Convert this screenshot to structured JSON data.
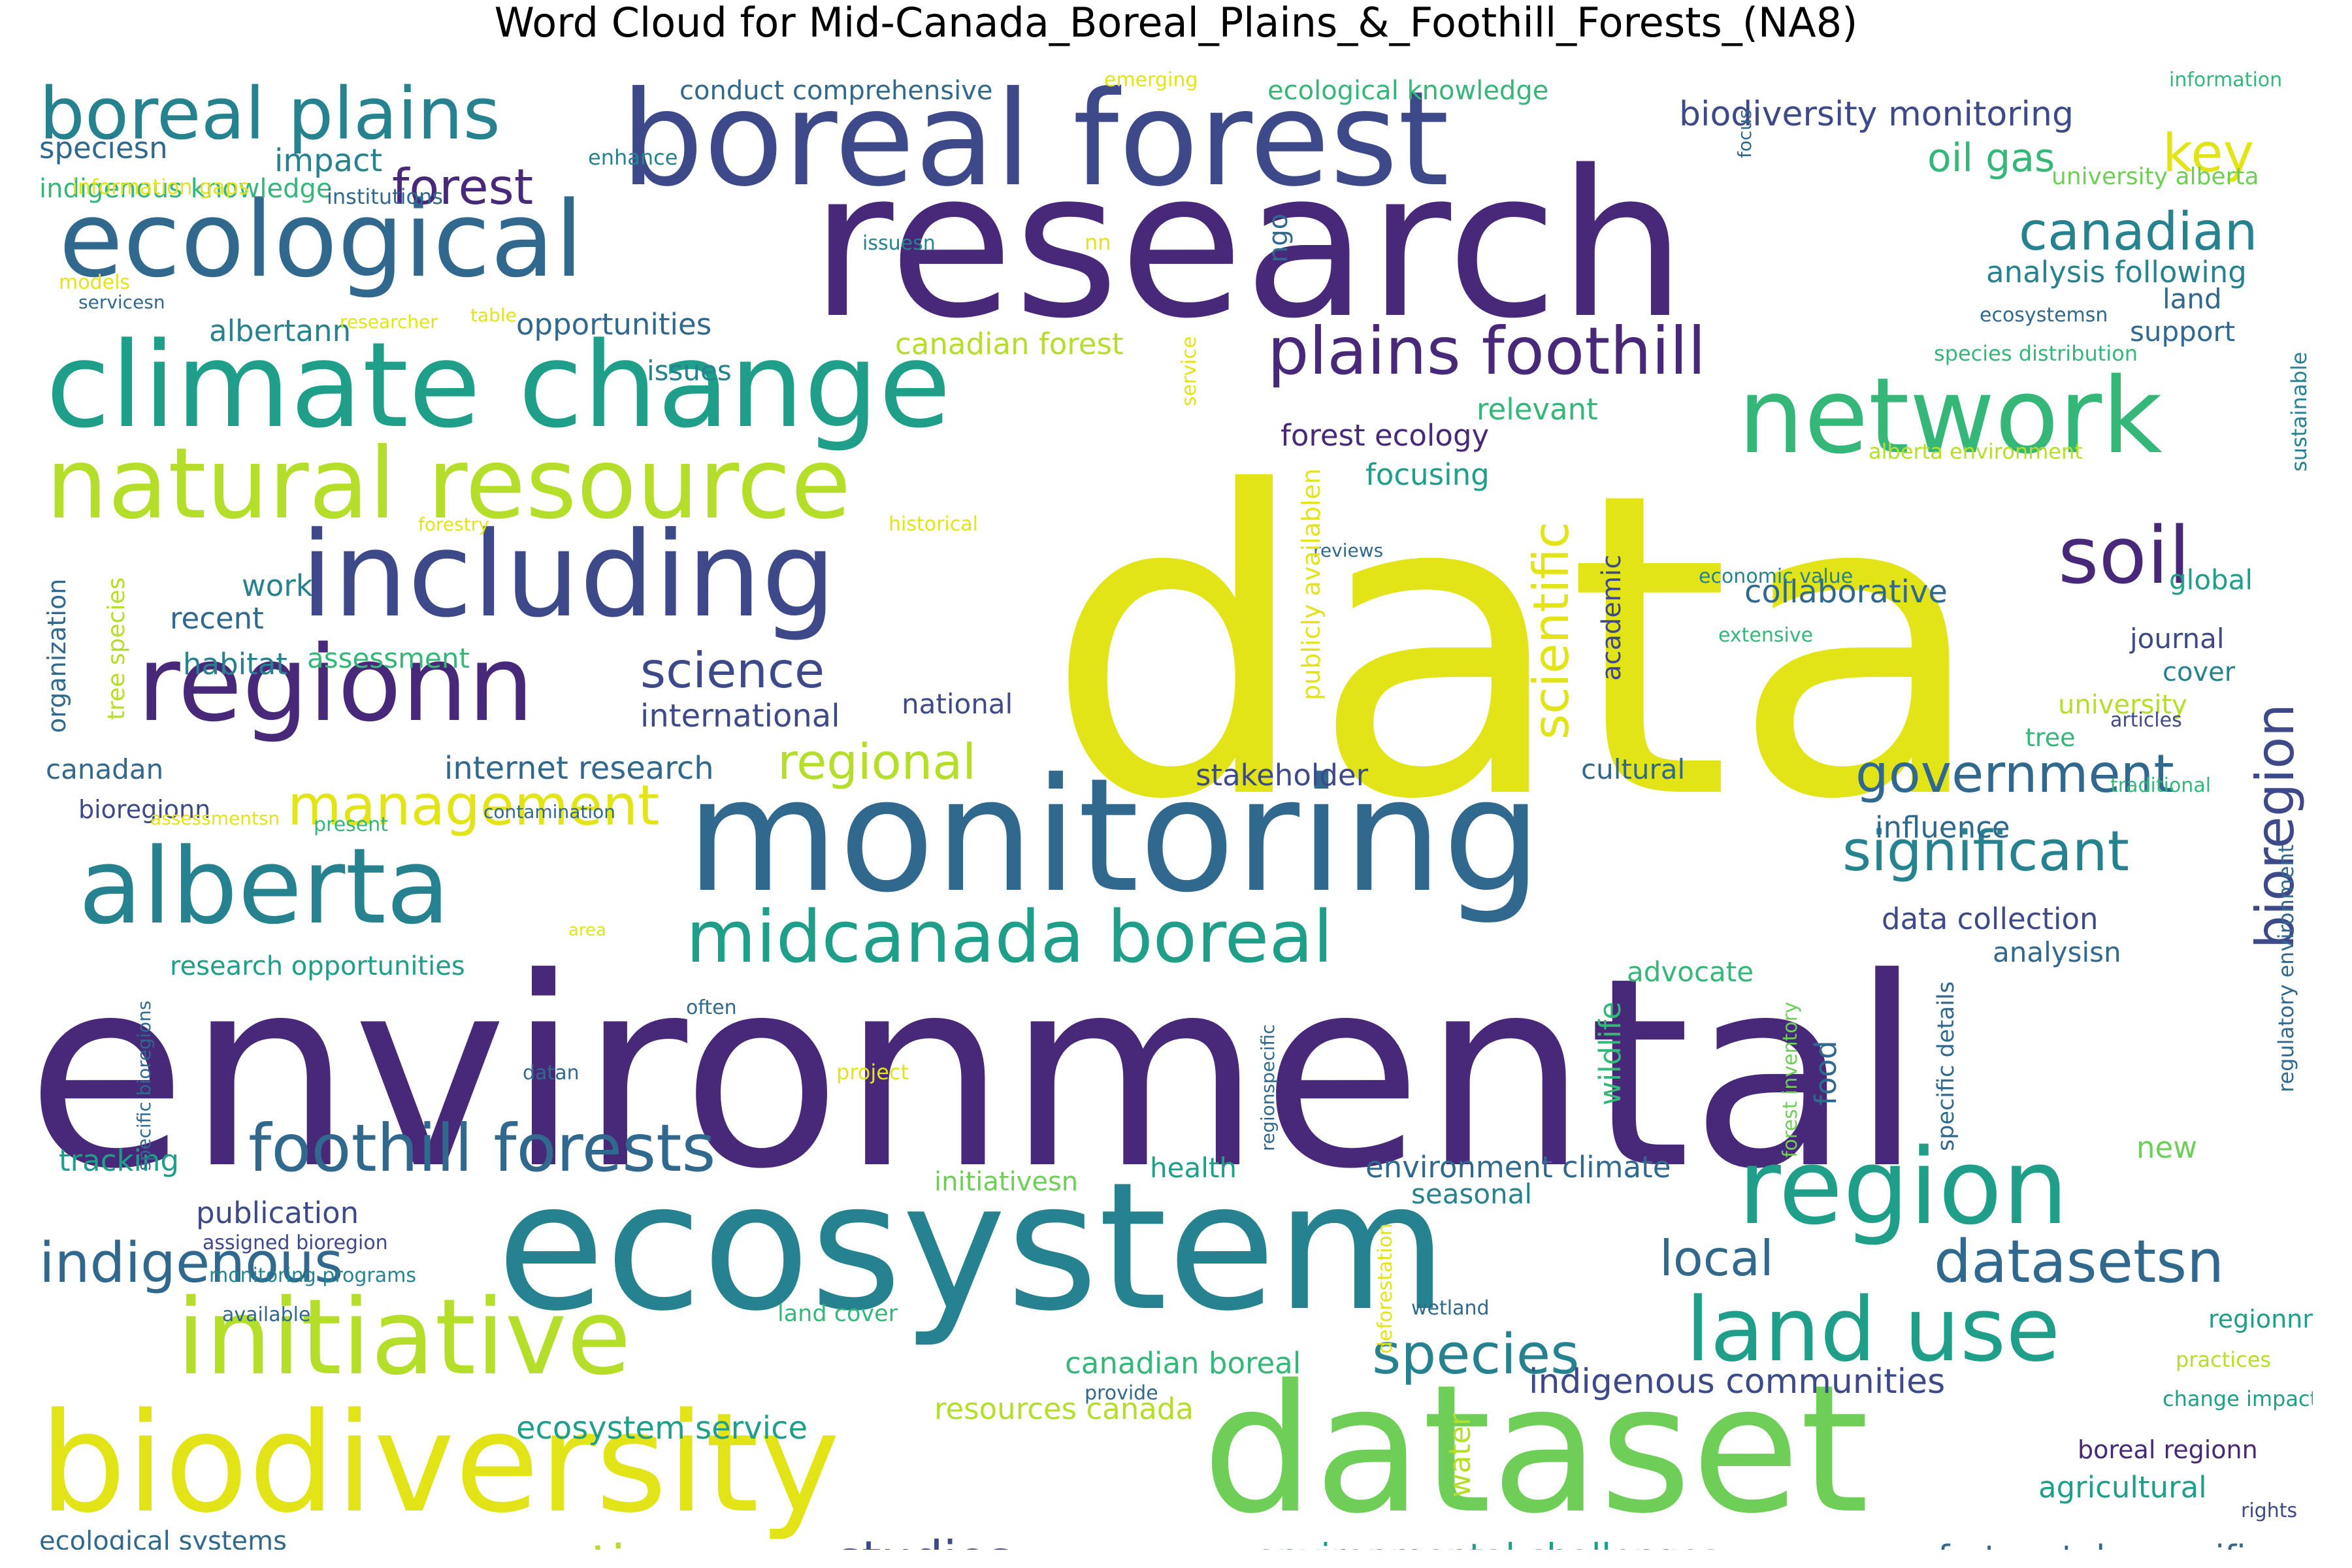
{
  "title": "Word Cloud for Mid-Canada_Boreal_Plains_&_Foothill_Forests_(NA8)",
  "palette": {
    "c1": "#482878",
    "c2": "#3e4989",
    "c3": "#31688e",
    "c4": "#26828e",
    "c5": "#1f9e89",
    "c6": "#35b779",
    "c7": "#6ece58",
    "c8": "#b5de2b",
    "c9": "#e2e418"
  },
  "words": [
    {
      "text": "data",
      "color": "c9"
    },
    {
      "text": "environmental",
      "color": "c1"
    },
    {
      "text": "research",
      "color": "c1"
    },
    {
      "text": "ecosystem",
      "color": "c4"
    },
    {
      "text": "dataset",
      "color": "c7"
    },
    {
      "text": "monitoring",
      "color": "c3"
    },
    {
      "text": "boreal forest",
      "color": "c2"
    },
    {
      "text": "biodiversity",
      "color": "c9"
    },
    {
      "text": "climate change",
      "color": "c5"
    },
    {
      "text": "including",
      "color": "c2"
    },
    {
      "text": "ecological",
      "color": "c3"
    },
    {
      "text": "alberta",
      "color": "c4"
    },
    {
      "text": "natural resource",
      "color": "c8"
    },
    {
      "text": "initiative",
      "color": "c8"
    },
    {
      "text": "network",
      "color": "c6"
    },
    {
      "text": "region",
      "color": "c5"
    },
    {
      "text": "regionn",
      "color": "c1"
    },
    {
      "text": "land use",
      "color": "c5"
    },
    {
      "text": "boreal plains",
      "color": "c4"
    },
    {
      "text": "midcanada boreal",
      "color": "c5"
    },
    {
      "text": "foothill forests",
      "color": "c3"
    },
    {
      "text": "plains foothill",
      "color": "c1"
    },
    {
      "text": "soil",
      "color": "c1"
    },
    {
      "text": "datasetsn",
      "color": "c3"
    },
    {
      "text": "management",
      "color": "c9"
    },
    {
      "text": "indigenous",
      "color": "c3"
    },
    {
      "text": "species",
      "color": "c4"
    },
    {
      "text": "significant",
      "color": "c4"
    },
    {
      "text": "government",
      "color": "c3"
    },
    {
      "text": "conservation",
      "color": "c8"
    },
    {
      "text": "studies",
      "color": "c2"
    },
    {
      "text": "canadian",
      "color": "c4"
    },
    {
      "text": "forest",
      "color": "c1"
    },
    {
      "text": "regional",
      "color": "c8"
    },
    {
      "text": "science",
      "color": "c2"
    },
    {
      "text": "local",
      "color": "c3"
    },
    {
      "text": "scientific",
      "color": "c9"
    },
    {
      "text": "bioregion",
      "color": "c2"
    },
    {
      "text": "key",
      "color": "c9"
    },
    {
      "text": "oil gas",
      "color": "c6"
    },
    {
      "text": "environmental challenges",
      "color": "c5"
    },
    {
      "text": "unfortunately specific",
      "color": "c3"
    },
    {
      "text": "indigenous communities",
      "color": "c2"
    },
    {
      "text": "biodiversity monitoring",
      "color": "c2"
    },
    {
      "text": "ecosystem service",
      "color": "c5"
    },
    {
      "text": "resources canada",
      "color": "c8"
    },
    {
      "text": "canadian boreal",
      "color": "c6"
    },
    {
      "text": "environment climate",
      "color": "c3"
    },
    {
      "text": "collaborative",
      "color": "c3"
    },
    {
      "text": "internet research",
      "color": "c3"
    },
    {
      "text": "international",
      "color": "c2"
    },
    {
      "text": "canadian forest",
      "color": "c8"
    },
    {
      "text": "forest ecology",
      "color": "c1"
    },
    {
      "text": "conduct comprehensive",
      "color": "c3"
    },
    {
      "text": "ecological knowledge",
      "color": "c6"
    },
    {
      "text": "indigenous knowledge",
      "color": "c6"
    },
    {
      "text": "research opportunities",
      "color": "c5"
    },
    {
      "text": "ecological systems",
      "color": "c3"
    },
    {
      "text": "data collection",
      "color": "c2"
    },
    {
      "text": "analysis following",
      "color": "c4"
    },
    {
      "text": "impact",
      "color": "c4"
    },
    {
      "text": "speciesn",
      "color": "c3"
    },
    {
      "text": "opportunities",
      "color": "c3"
    },
    {
      "text": "albertann",
      "color": "c4"
    },
    {
      "text": "issues",
      "color": "c4"
    },
    {
      "text": "relevant",
      "color": "c6"
    },
    {
      "text": "focusing",
      "color": "c5"
    },
    {
      "text": "habitat",
      "color": "c4"
    },
    {
      "text": "assessment",
      "color": "c6"
    },
    {
      "text": "recent",
      "color": "c3"
    },
    {
      "text": "work",
      "color": "c4"
    },
    {
      "text": "national",
      "color": "c2"
    },
    {
      "text": "stakeholder",
      "color": "c2"
    },
    {
      "text": "cultural",
      "color": "c3"
    },
    {
      "text": "influence",
      "color": "c3"
    },
    {
      "text": "canadan",
      "color": "c3"
    },
    {
      "text": "bioregionn",
      "color": "c2"
    },
    {
      "text": "tracking",
      "color": "c5"
    },
    {
      "text": "publication",
      "color": "c2"
    },
    {
      "text": "health",
      "color": "c5"
    },
    {
      "text": "seasonal",
      "color": "c4"
    },
    {
      "text": "initiativesn",
      "color": "c7"
    },
    {
      "text": "advocate",
      "color": "c6"
    },
    {
      "text": "analysisn",
      "color": "c3"
    },
    {
      "text": "food",
      "color": "c3"
    },
    {
      "text": "wildlife",
      "color": "c6"
    },
    {
      "text": "water",
      "color": "c8"
    },
    {
      "text": "new",
      "color": "c7"
    },
    {
      "text": "academic",
      "color": "c2"
    },
    {
      "text": "land",
      "color": "c3"
    },
    {
      "text": "support",
      "color": "c3"
    },
    {
      "text": "global",
      "color": "c5"
    },
    {
      "text": "journal",
      "color": "c2"
    },
    {
      "text": "cover",
      "color": "c4"
    },
    {
      "text": "university",
      "color": "c8"
    },
    {
      "text": "tree",
      "color": "c6"
    },
    {
      "text": "agricultural",
      "color": "c5"
    },
    {
      "text": "boreal regionn",
      "color": "c1"
    },
    {
      "text": "regionnn",
      "color": "c5"
    },
    {
      "text": "practices",
      "color": "c8"
    },
    {
      "text": "change impacts",
      "color": "c5"
    },
    {
      "text": "rights",
      "color": "c2"
    },
    {
      "text": "information",
      "color": "c6"
    },
    {
      "text": "university alberta",
      "color": "c7"
    },
    {
      "text": "ecosystemsn",
      "color": "c3"
    },
    {
      "text": "species distribution",
      "color": "c6"
    },
    {
      "text": "alberta environment",
      "color": "c8"
    },
    {
      "text": "sustainable",
      "color": "c4"
    },
    {
      "text": "regulatory environment",
      "color": "c3"
    },
    {
      "text": "economic value",
      "color": "c4"
    },
    {
      "text": "extensive",
      "color": "c6"
    },
    {
      "text": "articles",
      "color": "c2"
    },
    {
      "text": "traditional",
      "color": "c6"
    },
    {
      "text": "reviews",
      "color": "c3"
    },
    {
      "text": "publicly availablen",
      "color": "c9"
    },
    {
      "text": "service",
      "color": "c9"
    },
    {
      "text": "ngo",
      "color": "c3"
    },
    {
      "text": "focus",
      "color": "c3"
    },
    {
      "text": "emerging",
      "color": "c9"
    },
    {
      "text": "enhance",
      "color": "c4"
    },
    {
      "text": "institutions",
      "color": "c3"
    },
    {
      "text": "information gaps",
      "color": "c9"
    },
    {
      "text": "models",
      "color": "c9"
    },
    {
      "text": "servicesn",
      "color": "c3"
    },
    {
      "text": "researcher",
      "color": "c9"
    },
    {
      "text": "table",
      "color": "c9"
    },
    {
      "text": "nn",
      "color": "c9"
    },
    {
      "text": "issuesn",
      "color": "c4"
    },
    {
      "text": "organization",
      "color": "c3"
    },
    {
      "text": "tree species",
      "color": "c8"
    },
    {
      "text": "forestry",
      "color": "c9"
    },
    {
      "text": "historical",
      "color": "c9"
    },
    {
      "text": "assessmentsn",
      "color": "c9"
    },
    {
      "text": "present",
      "color": "c6"
    },
    {
      "text": "contamination",
      "color": "c3"
    },
    {
      "text": "area",
      "color": "c9"
    },
    {
      "text": "often",
      "color": "c3"
    },
    {
      "text": "datan",
      "color": "c3"
    },
    {
      "text": "project",
      "color": "c9"
    },
    {
      "text": "specific bioregions",
      "color": "c3"
    },
    {
      "text": "regionspecific",
      "color": "c3"
    },
    {
      "text": "assigned bioregion",
      "color": "c2"
    },
    {
      "text": "monitoring programs",
      "color": "c4"
    },
    {
      "text": "available",
      "color": "c3"
    },
    {
      "text": "land cover",
      "color": "c6"
    },
    {
      "text": "deforestation",
      "color": "c9"
    },
    {
      "text": "wetland",
      "color": "c3"
    },
    {
      "text": "forest inventory",
      "color": "c7"
    },
    {
      "text": "specific details",
      "color": "c3"
    },
    {
      "text": "provide",
      "color": "c3"
    }
  ]
}
